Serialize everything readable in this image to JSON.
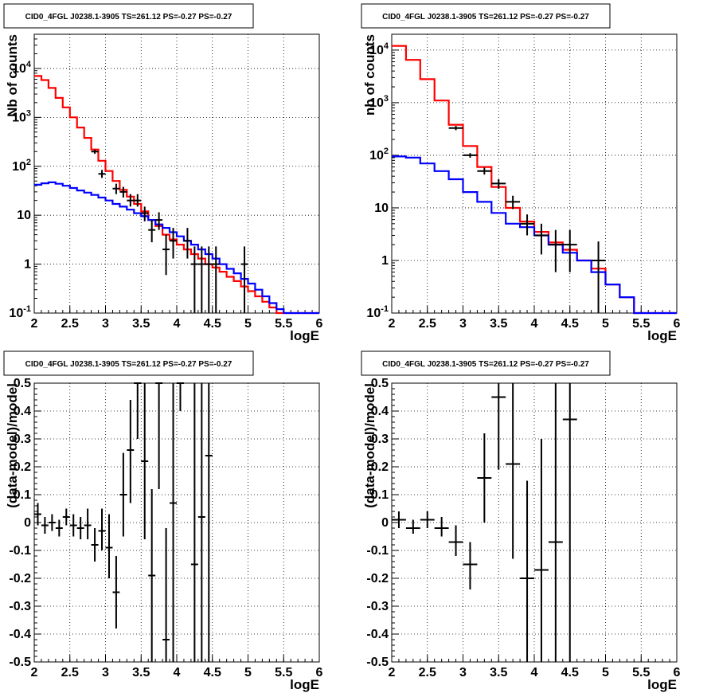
{
  "chart_data": [
    {
      "type": "line",
      "title": "CID0_4FGL J0238.1-3905 TS=261.12 PS=-0.27 PS=-0.27",
      "xlabel": "logE",
      "ylabel": "Nb of counts",
      "xlim": [
        2,
        6
      ],
      "ylim": [
        0.1,
        50000
      ],
      "yscale": "log",
      "grid": true,
      "x_ticks": [
        "2",
        "2.5",
        "3",
        "3.5",
        "4",
        "4.5",
        "5",
        "5.5",
        "6"
      ],
      "y_ticks": [
        "10^-1",
        "1",
        "10",
        "10^2",
        "10^3",
        "10^4"
      ],
      "bin_edges": [
        2.0,
        2.1,
        2.2,
        2.3,
        2.4,
        2.5,
        2.6,
        2.7,
        2.8,
        2.9,
        3.0,
        3.1,
        3.2,
        3.3,
        3.4,
        3.5,
        3.6,
        3.7,
        3.8,
        3.9,
        4.0,
        4.1,
        4.2,
        4.3,
        4.4,
        4.5,
        4.6,
        4.7,
        4.8,
        4.9,
        5.0,
        5.1,
        5.2,
        5.3,
        5.4,
        5.5,
        5.6,
        5.7,
        5.8,
        5.9,
        6.0
      ],
      "series": [
        {
          "color": "#ff0000",
          "kind": "step",
          "values": [
            7000,
            5800,
            4000,
            2500,
            1600,
            1000,
            620,
            380,
            220,
            130,
            80,
            50,
            33,
            24,
            17,
            12,
            8,
            6,
            4,
            3.2,
            2.5,
            2,
            1.6,
            1.3,
            1,
            0.85,
            0.7,
            0.55,
            0.45,
            0.35,
            0.28,
            0.22,
            0.17,
            0.13,
            0.1,
            0.1,
            0.1,
            0.1,
            0.1,
            0.1
          ]
        },
        {
          "color": "#0000ff",
          "kind": "step",
          "values": [
            42,
            45,
            47,
            44,
            40,
            36,
            32,
            29,
            26,
            23,
            20,
            17,
            15,
            13,
            11,
            9.5,
            8,
            6.5,
            5.5,
            4.5,
            3.7,
            3,
            2.5,
            2,
            1.6,
            1.3,
            1,
            0.8,
            0.65,
            0.5,
            0.4,
            0.3,
            0.22,
            0.16,
            0.12,
            0.1,
            0.1,
            0.1,
            0.1,
            0.1
          ]
        },
        {
          "color": "#000000",
          "kind": "errorbar",
          "points": [
            {
              "x": 2.85,
              "y": 200,
              "lo": 180,
              "hi": 220
            },
            {
              "x": 2.95,
              "y": 70,
              "lo": 58,
              "hi": 84
            },
            {
              "x": 3.15,
              "y": 35,
              "lo": 27,
              "hi": 44
            },
            {
              "x": 3.25,
              "y": 30,
              "lo": 23,
              "hi": 38
            },
            {
              "x": 3.35,
              "y": 20,
              "lo": 15,
              "hi": 27
            },
            {
              "x": 3.45,
              "y": 20,
              "lo": 15,
              "hi": 27
            },
            {
              "x": 3.55,
              "y": 11,
              "lo": 7.5,
              "hi": 15
            },
            {
              "x": 3.65,
              "y": 5,
              "lo": 2.8,
              "hi": 8
            },
            {
              "x": 3.75,
              "y": 8,
              "lo": 5,
              "hi": 11.5
            },
            {
              "x": 3.85,
              "y": 2,
              "lo": 0.6,
              "hi": 4
            },
            {
              "x": 3.95,
              "y": 3,
              "lo": 1.3,
              "hi": 5.5
            },
            {
              "x": 4.15,
              "y": 3,
              "lo": 1.3,
              "hi": 5.5
            },
            {
              "x": 4.25,
              "y": 1,
              "lo": 0.1,
              "hi": 2.3
            },
            {
              "x": 4.35,
              "y": 1,
              "lo": 0.1,
              "hi": 2.3
            },
            {
              "x": 4.45,
              "y": 1,
              "lo": 0.1,
              "hi": 2.3
            },
            {
              "x": 4.55,
              "y": 1,
              "lo": 0.1,
              "hi": 2.3
            },
            {
              "x": 4.95,
              "y": 1,
              "lo": 0.1,
              "hi": 2.3
            }
          ]
        }
      ]
    },
    {
      "type": "line",
      "title": "CID0_4FGL J0238.1-3905 TS=261.12 PS=-0.27 PS=-0.27",
      "xlabel": "logE",
      "ylabel": "nb of counts",
      "xlim": [
        2,
        6
      ],
      "ylim": [
        0.1,
        20000
      ],
      "yscale": "log",
      "grid": true,
      "x_ticks": [
        "2",
        "2.5",
        "3",
        "3.5",
        "4",
        "4.5",
        "5",
        "5.5",
        "6"
      ],
      "y_ticks": [
        "10^-1",
        "1",
        "10",
        "10^2",
        "10^3",
        "10^4"
      ],
      "bin_edges": [
        2.0,
        2.2,
        2.4,
        2.6,
        2.8,
        3.0,
        3.2,
        3.4,
        3.6,
        3.8,
        4.0,
        4.2,
        4.4,
        4.6,
        4.8,
        5.0,
        5.2,
        5.4,
        5.6,
        5.8,
        6.0
      ],
      "series": [
        {
          "color": "#ff0000",
          "kind": "step",
          "values": [
            12000,
            6500,
            2800,
            1100,
            380,
            150,
            60,
            25,
            10,
            5.5,
            3.5,
            2.2,
            1.6,
            1.0,
            0.7,
            0.35,
            0.2,
            0.1,
            0.1,
            0.1
          ]
        },
        {
          "color": "#0000ff",
          "kind": "step",
          "values": [
            95,
            90,
            70,
            50,
            35,
            20,
            13,
            8,
            5,
            4.3,
            3,
            2,
            1.4,
            1.0,
            0.6,
            0.35,
            0.2,
            0.1,
            0.1,
            0.1
          ]
        },
        {
          "color": "#000000",
          "kind": "errorbar",
          "points": [
            {
              "x": 2.9,
              "y": 330,
              "lo": 300,
              "hi": 360
            },
            {
              "x": 3.1,
              "y": 100,
              "lo": 90,
              "hi": 110
            },
            {
              "x": 3.3,
              "y": 50,
              "lo": 43,
              "hi": 58
            },
            {
              "x": 3.5,
              "y": 29,
              "lo": 23,
              "hi": 35
            },
            {
              "x": 3.7,
              "y": 13,
              "lo": 9.5,
              "hi": 17
            },
            {
              "x": 3.9,
              "y": 5,
              "lo": 3,
              "hi": 7.5
            },
            {
              "x": 4.1,
              "y": 3,
              "lo": 1.3,
              "hi": 5
            },
            {
              "x": 4.3,
              "y": 2,
              "lo": 0.6,
              "hi": 3.8
            },
            {
              "x": 4.5,
              "y": 2,
              "lo": 0.6,
              "hi": 3.8
            },
            {
              "x": 4.9,
              "y": 1,
              "lo": 0.1,
              "hi": 2.3
            }
          ]
        }
      ]
    },
    {
      "type": "scatter",
      "title": "CID0_4FGL J0238.1-3905 TS=261.12 PS=-0.27 PS=-0.27",
      "xlabel": "logE",
      "ylabel": "(data-model)/model",
      "xlim": [
        2,
        6
      ],
      "ylim": [
        -0.5,
        0.5
      ],
      "grid": true,
      "x_ticks": [
        "2",
        "2.5",
        "3",
        "3.5",
        "4",
        "4.5",
        "5",
        "5.5",
        "6"
      ],
      "y_ticks": [
        "-0.5",
        "-0.4",
        "-0.3",
        "-0.2",
        "-0.1",
        "0",
        "0.1",
        "0.2",
        "0.3",
        "0.4",
        "0.5"
      ],
      "xerr": 0.05,
      "series": [
        {
          "color": "#000000",
          "kind": "errorbar",
          "points": [
            {
              "x": 2.05,
              "y": 0.03,
              "lo": -0.01,
              "hi": 0.07
            },
            {
              "x": 2.15,
              "y": -0.01,
              "lo": -0.04,
              "hi": 0.02
            },
            {
              "x": 2.25,
              "y": 0.0,
              "lo": -0.03,
              "hi": 0.03
            },
            {
              "x": 2.35,
              "y": -0.02,
              "lo": -0.05,
              "hi": 0.01
            },
            {
              "x": 2.45,
              "y": 0.02,
              "lo": -0.01,
              "hi": 0.05
            },
            {
              "x": 2.55,
              "y": -0.01,
              "lo": -0.05,
              "hi": 0.03
            },
            {
              "x": 2.65,
              "y": -0.02,
              "lo": -0.06,
              "hi": 0.02
            },
            {
              "x": 2.75,
              "y": -0.01,
              "lo": -0.06,
              "hi": 0.05
            },
            {
              "x": 2.85,
              "y": -0.08,
              "lo": -0.14,
              "hi": -0.02
            },
            {
              "x": 2.95,
              "y": -0.03,
              "lo": -0.1,
              "hi": 0.05
            },
            {
              "x": 3.05,
              "y": -0.09,
              "lo": -0.2,
              "hi": 0.03
            },
            {
              "x": 3.15,
              "y": -0.25,
              "lo": -0.38,
              "hi": -0.12
            },
            {
              "x": 3.25,
              "y": 0.1,
              "lo": -0.05,
              "hi": 0.25
            },
            {
              "x": 3.35,
              "y": 0.26,
              "lo": 0.07,
              "hi": 0.44
            },
            {
              "x": 3.45,
              "y": 0.5,
              "lo": 0.3,
              "hi": 0.5
            },
            {
              "x": 3.55,
              "y": 0.22,
              "lo": -0.06,
              "hi": 0.5
            },
            {
              "x": 3.65,
              "y": -0.19,
              "lo": -0.5,
              "hi": 0.12
            },
            {
              "x": 3.75,
              "y": 0.5,
              "lo": 0.12,
              "hi": 0.5
            },
            {
              "x": 3.85,
              "y": -0.42,
              "lo": -0.5,
              "hi": -0.02
            },
            {
              "x": 3.95,
              "y": 0.07,
              "lo": -0.5,
              "hi": 0.5
            },
            {
              "x": 4.05,
              "y": 0.5,
              "lo": 0.4,
              "hi": 0.5
            },
            {
              "x": 4.25,
              "y": -0.15,
              "lo": -0.5,
              "hi": 0.5
            },
            {
              "x": 4.35,
              "y": 0.02,
              "lo": -0.5,
              "hi": 0.5
            },
            {
              "x": 4.45,
              "y": 0.24,
              "lo": -0.5,
              "hi": 0.5
            }
          ]
        }
      ]
    },
    {
      "type": "scatter",
      "title": "CID0_4FGL J0238.1-3905 TS=261.12 PS=-0.27 PS=-0.27",
      "xlabel": "logE",
      "ylabel": "(data-model)/model",
      "xlim": [
        2,
        6
      ],
      "ylim": [
        -0.5,
        0.5
      ],
      "grid": true,
      "x_ticks": [
        "2",
        "2.5",
        "3",
        "3.5",
        "4",
        "4.5",
        "5",
        "5.5",
        "6"
      ],
      "y_ticks": [
        "-0.5",
        "-0.4",
        "-0.3",
        "-0.2",
        "-0.1",
        "0",
        "0.1",
        "0.2",
        "0.3",
        "0.4",
        "0.5"
      ],
      "xerr": 0.1,
      "series": [
        {
          "color": "#000000",
          "kind": "errorbar",
          "points": [
            {
              "x": 2.1,
              "y": 0.01,
              "lo": -0.02,
              "hi": 0.04
            },
            {
              "x": 2.3,
              "y": -0.02,
              "lo": -0.04,
              "hi": 0.01
            },
            {
              "x": 2.5,
              "y": 0.01,
              "lo": -0.02,
              "hi": 0.04
            },
            {
              "x": 2.7,
              "y": -0.02,
              "lo": -0.05,
              "hi": 0.02
            },
            {
              "x": 2.9,
              "y": -0.07,
              "lo": -0.12,
              "hi": -0.01
            },
            {
              "x": 3.1,
              "y": -0.15,
              "lo": -0.24,
              "hi": -0.07
            },
            {
              "x": 3.3,
              "y": 0.16,
              "lo": 0.0,
              "hi": 0.32
            },
            {
              "x": 3.5,
              "y": 0.45,
              "lo": 0.19,
              "hi": 0.5
            },
            {
              "x": 3.7,
              "y": 0.21,
              "lo": -0.13,
              "hi": 0.5
            },
            {
              "x": 3.9,
              "y": -0.2,
              "lo": -0.5,
              "hi": 0.15
            },
            {
              "x": 4.1,
              "y": -0.17,
              "lo": -0.5,
              "hi": 0.3
            },
            {
              "x": 4.3,
              "y": -0.07,
              "lo": -0.5,
              "hi": 0.5
            },
            {
              "x": 4.5,
              "y": 0.37,
              "lo": -0.5,
              "hi": 0.5
            }
          ]
        }
      ]
    }
  ]
}
